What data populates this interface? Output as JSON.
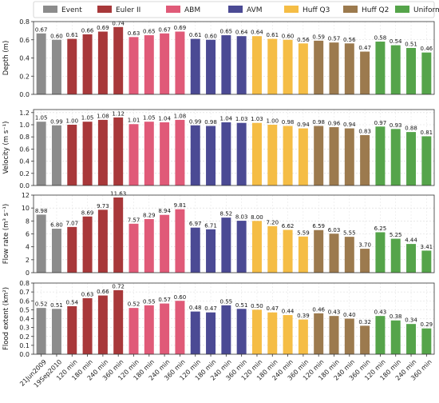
{
  "chart_data": {
    "type": "bar",
    "categories": [
      "21Jun2009",
      "19Sep2010",
      "120 min",
      "180 min",
      "240 min",
      "360 min",
      "120 min",
      "180 min",
      "240 min",
      "360 min",
      "120 min",
      "180 min",
      "240 min",
      "360 min",
      "120 min",
      "180 min",
      "240 min",
      "360 min",
      "120 min",
      "180 min",
      "240 min",
      "360 min",
      "120 min",
      "180 min",
      "240 min",
      "360 min"
    ],
    "groups": [
      {
        "name": "Event",
        "color": "#8c8c8c",
        "count": 2
      },
      {
        "name": "Euler II",
        "color": "#a8383a",
        "count": 4
      },
      {
        "name": "ABM",
        "color": "#e05a78",
        "count": 4
      },
      {
        "name": "AVM",
        "color": "#4b4a94",
        "count": 4
      },
      {
        "name": "Huff Q3",
        "color": "#f5bd45",
        "count": 4
      },
      {
        "name": "Huff Q2",
        "color": "#9c7a4e",
        "count": 4
      },
      {
        "name": "Uniform",
        "color": "#55a44a",
        "count": 4
      }
    ],
    "legend_placement": "top",
    "grid": true,
    "panels": [
      {
        "ylabel": "Depth (m)",
        "ylim": [
          0,
          0.8
        ],
        "yticks": [
          "0.0",
          "0.2",
          "0.4",
          "0.6",
          "0.8"
        ],
        "tick_values": [
          0,
          0.2,
          0.4,
          0.6,
          0.8
        ],
        "values": [
          0.67,
          0.6,
          0.61,
          0.66,
          0.69,
          0.74,
          0.63,
          0.65,
          0.67,
          0.69,
          0.61,
          0.6,
          0.65,
          0.64,
          0.64,
          0.61,
          0.6,
          0.56,
          0.59,
          0.57,
          0.56,
          0.47,
          0.58,
          0.54,
          0.51,
          0.46
        ],
        "labels": [
          "0.67",
          "0.60",
          "0.61",
          "0.66",
          "0.69",
          "0.74",
          "0.63",
          "0.65",
          "0.67",
          "0.69",
          "0.61",
          "0.60",
          "0.65",
          "0.64",
          "0.64",
          "0.61",
          "0.60",
          "0.56",
          "0.59",
          "0.57",
          "0.56",
          "0.47",
          "0.58",
          "0.54",
          "0.51",
          "0.46"
        ]
      },
      {
        "ylabel": "Velocity (m s⁻¹)",
        "ylim": [
          0,
          1.25
        ],
        "yticks": [
          "0.0",
          "0.2",
          "0.4",
          "0.6",
          "0.8",
          "1.0",
          "1.2"
        ],
        "tick_values": [
          0,
          0.2,
          0.4,
          0.6,
          0.8,
          1.0,
          1.2
        ],
        "values": [
          1.05,
          0.99,
          1.0,
          1.05,
          1.08,
          1.12,
          1.01,
          1.05,
          1.04,
          1.08,
          0.99,
          0.98,
          1.04,
          1.03,
          1.03,
          1.0,
          0.98,
          0.94,
          0.98,
          0.96,
          0.94,
          0.83,
          0.97,
          0.93,
          0.88,
          0.81
        ],
        "labels": [
          "1.05",
          "0.99",
          "1.00",
          "1.05",
          "1.08",
          "1.12",
          "1.01",
          "1.05",
          "1.04",
          "1.08",
          "0.99",
          "0.98",
          "1.04",
          "1.03",
          "1.03",
          "1.00",
          "0.98",
          "0.94",
          "0.98",
          "0.96",
          "0.94",
          "0.83",
          "0.97",
          "0.93",
          "0.88",
          "0.81"
        ]
      },
      {
        "ylabel": "Flow rate (m³ s⁻¹)",
        "ylim": [
          0,
          12
        ],
        "yticks": [
          "0",
          "2",
          "4",
          "6",
          "8",
          "10",
          "12"
        ],
        "tick_values": [
          0,
          2,
          4,
          6,
          8,
          10,
          12
        ],
        "values": [
          8.98,
          6.8,
          7.07,
          8.69,
          9.73,
          11.63,
          7.57,
          8.29,
          8.94,
          9.81,
          6.97,
          6.71,
          8.52,
          8.03,
          8.0,
          7.2,
          6.62,
          5.59,
          6.59,
          6.03,
          5.55,
          3.7,
          6.25,
          5.25,
          4.44,
          3.41
        ],
        "labels": [
          "8.98",
          "6.80",
          "7.07",
          "8.69",
          "9.73",
          "11.63",
          "7.57",
          "8.29",
          "8.94",
          "9.81",
          "6.97",
          "6.71",
          "8.52",
          "8.03",
          "8.00",
          "7.20",
          "6.62",
          "5.59",
          "6.59",
          "6.03",
          "5.55",
          "3.70",
          "6.25",
          "5.25",
          "4.44",
          "3.41"
        ]
      },
      {
        "ylabel": "Flood extent (km²)",
        "ylim": [
          0,
          0.8
        ],
        "yticks": [
          "0.0",
          "0.1",
          "0.2",
          "0.3",
          "0.4",
          "0.5",
          "0.6",
          "0.7",
          "0.8"
        ],
        "tick_values": [
          0,
          0.1,
          0.2,
          0.3,
          0.4,
          0.5,
          0.6,
          0.7,
          0.8
        ],
        "values": [
          0.52,
          0.51,
          0.54,
          0.63,
          0.66,
          0.72,
          0.52,
          0.55,
          0.57,
          0.6,
          0.48,
          0.47,
          0.55,
          0.51,
          0.5,
          0.47,
          0.44,
          0.39,
          0.46,
          0.43,
          0.4,
          0.32,
          0.43,
          0.38,
          0.34,
          0.29
        ],
        "labels": [
          "0.52",
          "0.51",
          "0.54",
          "0.63",
          "0.66",
          "0.72",
          "0.52",
          "0.55",
          "0.57",
          "0.60",
          "0.48",
          "0.47",
          "0.55",
          "0.51",
          "0.50",
          "0.47",
          "0.44",
          "0.39",
          "0.46",
          "0.43",
          "0.40",
          "0.32",
          "0.43",
          "0.38",
          "0.34",
          "0.29"
        ]
      }
    ]
  }
}
